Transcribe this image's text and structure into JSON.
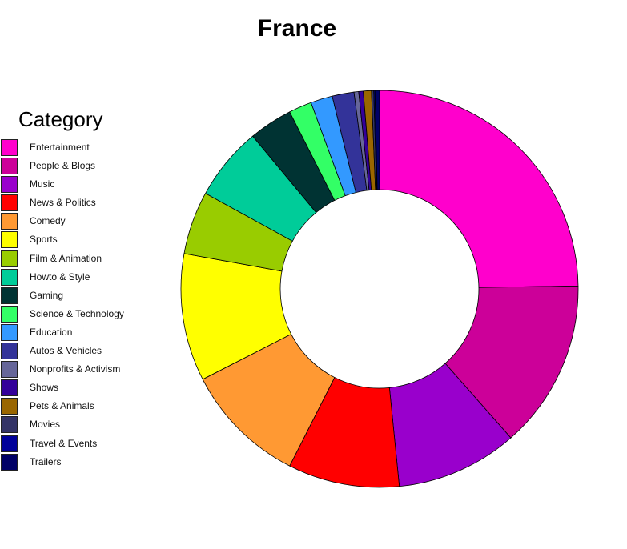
{
  "chart_data": {
    "type": "pie",
    "title": "France",
    "legend_title": "Category",
    "legend_position": "left",
    "slices": [
      {
        "label": "Entertainment",
        "value": 26.5,
        "color": "#FF00CC"
      },
      {
        "label": "People & Blogs",
        "value": 14.7,
        "color": "#CC0099"
      },
      {
        "label": "Music",
        "value": 10.6,
        "color": "#9900CC"
      },
      {
        "label": "News & Politics",
        "value": 9.7,
        "color": "#FF0000"
      },
      {
        "label": "Comedy",
        "value": 10.7,
        "color": "#FF9933"
      },
      {
        "label": "Sports",
        "value": 11.1,
        "color": "#FFFF00"
      },
      {
        "label": "Film & Animation",
        "value": 5.5,
        "color": "#99CC00"
      },
      {
        "label": "Howto & Style",
        "value": 6.4,
        "color": "#00CC99"
      },
      {
        "label": "Gaming",
        "value": 3.8,
        "color": "#003333"
      },
      {
        "label": "Science & Technology",
        "value": 2.0,
        "color": "#33FF66"
      },
      {
        "label": "Education",
        "value": 1.9,
        "color": "#3399FF"
      },
      {
        "label": "Autos & Vehicles",
        "value": 1.9,
        "color": "#333399"
      },
      {
        "label": "Nonprofits & Activism",
        "value": 0.4,
        "color": "#666699"
      },
      {
        "label": "Shows",
        "value": 0.4,
        "color": "#330099"
      },
      {
        "label": "Pets & Animals",
        "value": 0.7,
        "color": "#996600"
      },
      {
        "label": "Movies",
        "value": 0.2,
        "color": "#333366"
      },
      {
        "label": "Travel & Events",
        "value": 0.1,
        "color": "#000099"
      },
      {
        "label": "Trailers",
        "value": 0.4,
        "color": "#000066"
      }
    ]
  }
}
